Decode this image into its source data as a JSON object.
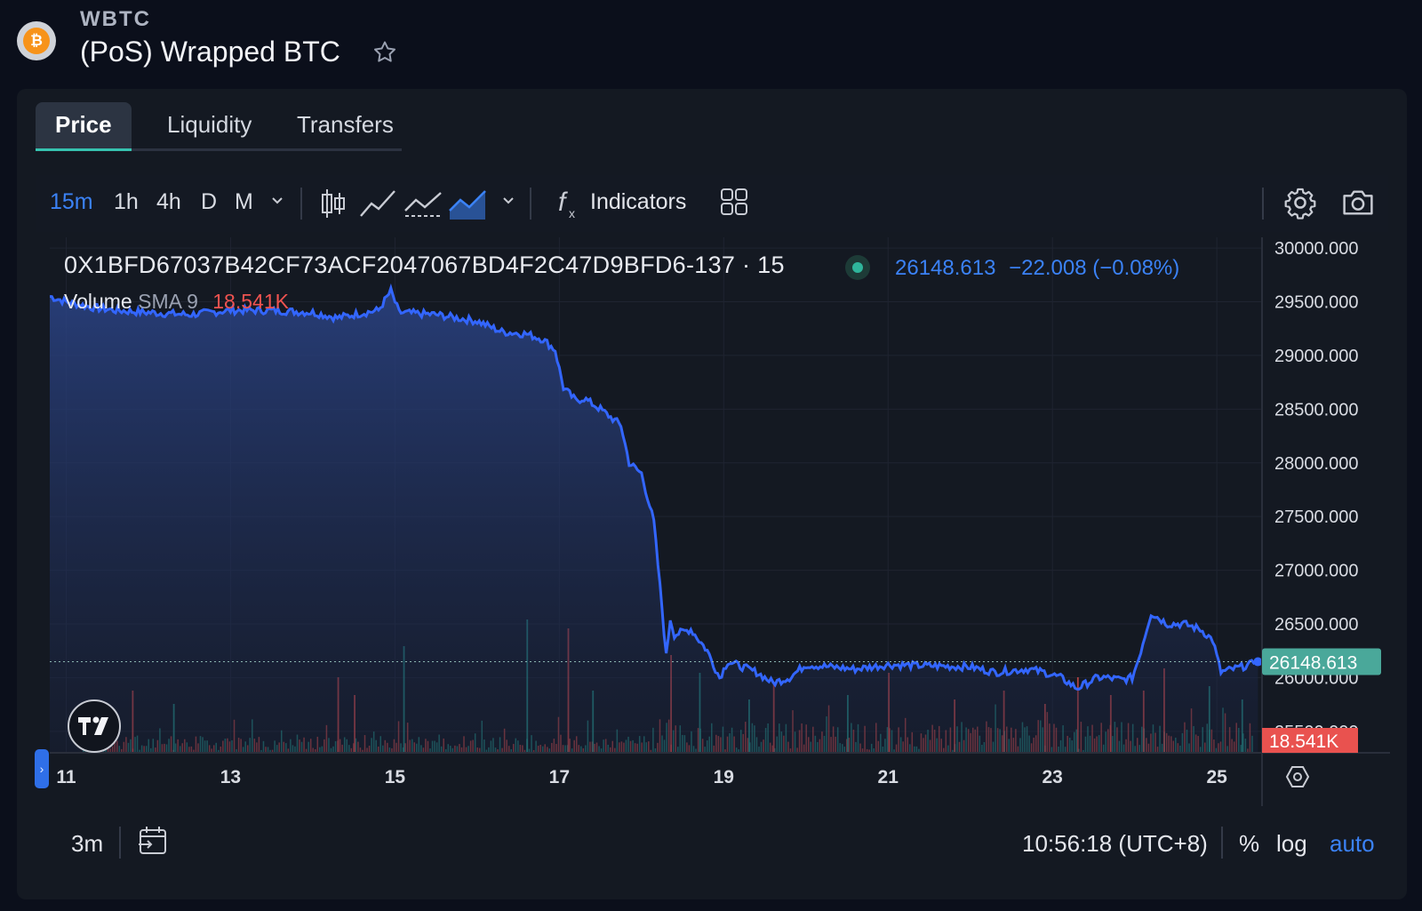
{
  "header": {
    "symbol": "WBTC",
    "name": "(PoS) Wrapped BTC",
    "logo_glyph": "₿",
    "star_icon": "star-outline-icon"
  },
  "tabs": [
    {
      "label": "Price",
      "active": true
    },
    {
      "label": "Liquidity",
      "active": false
    },
    {
      "label": "Transfers",
      "active": false
    }
  ],
  "toolbar": {
    "timeframes": [
      "15m",
      "1h",
      "4h",
      "D",
      "M"
    ],
    "active_timeframe": "15m",
    "indicators_label": "Indicators",
    "icons": [
      "chevron-down-icon",
      "candles-icon",
      "line-icon",
      "dashed-line-icon",
      "area-icon",
      "chevron-down-icon",
      "function-icon",
      "layout-grid-icon",
      "settings-gear-icon",
      "camera-icon"
    ]
  },
  "legend": {
    "title": "0X1BFD67037B42CF73ACF2047067BD4F2C47D9BFD6-137 · 15",
    "price": "26148.613",
    "change": "−22.008 (−0.08%)",
    "volume_label": "Volume",
    "sma_label": "SMA 9",
    "volume_value": "18.541K"
  },
  "chart_data": {
    "type": "area",
    "x_ticks": [
      "11",
      "13",
      "15",
      "17",
      "19",
      "21",
      "23",
      "25"
    ],
    "y_ticks": [
      "30000.000",
      "29500.000",
      "29000.000",
      "28500.000",
      "28000.000",
      "27500.000",
      "27000.000",
      "26500.000",
      "26000.000",
      "25500.000"
    ],
    "ylim": [
      25300,
      30100
    ],
    "x_range_days": [
      10.8,
      25.55
    ],
    "last_price_label": "26148.613",
    "last_price": 26148.613,
    "volume_label_badge": "18.541K",
    "series": [
      {
        "name": "Price",
        "x": [
          10.8,
          11.0,
          11.3,
          11.6,
          12.0,
          12.5,
          13.0,
          13.5,
          14.0,
          14.3,
          14.5,
          14.8,
          14.95,
          15.05,
          15.5,
          16.0,
          16.3,
          16.6,
          16.8,
          16.95,
          17.05,
          17.2,
          17.3,
          17.5,
          17.75,
          17.85,
          18.0,
          18.15,
          18.25,
          18.3,
          18.35,
          18.4,
          18.6,
          18.8,
          18.95,
          19.05,
          19.4,
          19.6,
          19.8,
          20.0,
          20.3,
          20.6,
          21.0,
          21.5,
          22.0,
          22.3,
          22.7,
          22.9,
          23.1,
          23.3,
          23.55,
          23.65,
          23.85,
          23.97,
          24.05,
          24.2,
          24.4,
          24.6,
          24.8,
          24.95,
          25.05,
          25.2,
          25.4,
          25.5
        ],
        "y": [
          29550,
          29500,
          29450,
          29420,
          29400,
          29380,
          29420,
          29420,
          29400,
          29350,
          29380,
          29420,
          29600,
          29400,
          29380,
          29320,
          29220,
          29200,
          29150,
          29050,
          28700,
          28580,
          28600,
          28500,
          28350,
          28000,
          27900,
          27450,
          26650,
          26200,
          26550,
          26400,
          26450,
          26250,
          26000,
          26150,
          26050,
          25950,
          26000,
          26120,
          26100,
          26080,
          26120,
          26110,
          26100,
          26050,
          26080,
          26050,
          26000,
          25900,
          26000,
          26000,
          25980,
          26000,
          26180,
          26600,
          26500,
          26500,
          26450,
          26350,
          26050,
          26080,
          26120,
          26148
        ]
      }
    ]
  },
  "bottom_bar": {
    "range_label": "3m",
    "time": "10:56:18 (UTC+8)",
    "percent": "%",
    "log": "log",
    "auto": "auto",
    "icons": [
      "calendar-range-icon",
      "scale-settings-icon"
    ]
  },
  "colors": {
    "accent": "#3b82f6",
    "up": "#26a69a",
    "down": "#ef5350",
    "background": "#0b0f1b",
    "panel": "#141922"
  }
}
